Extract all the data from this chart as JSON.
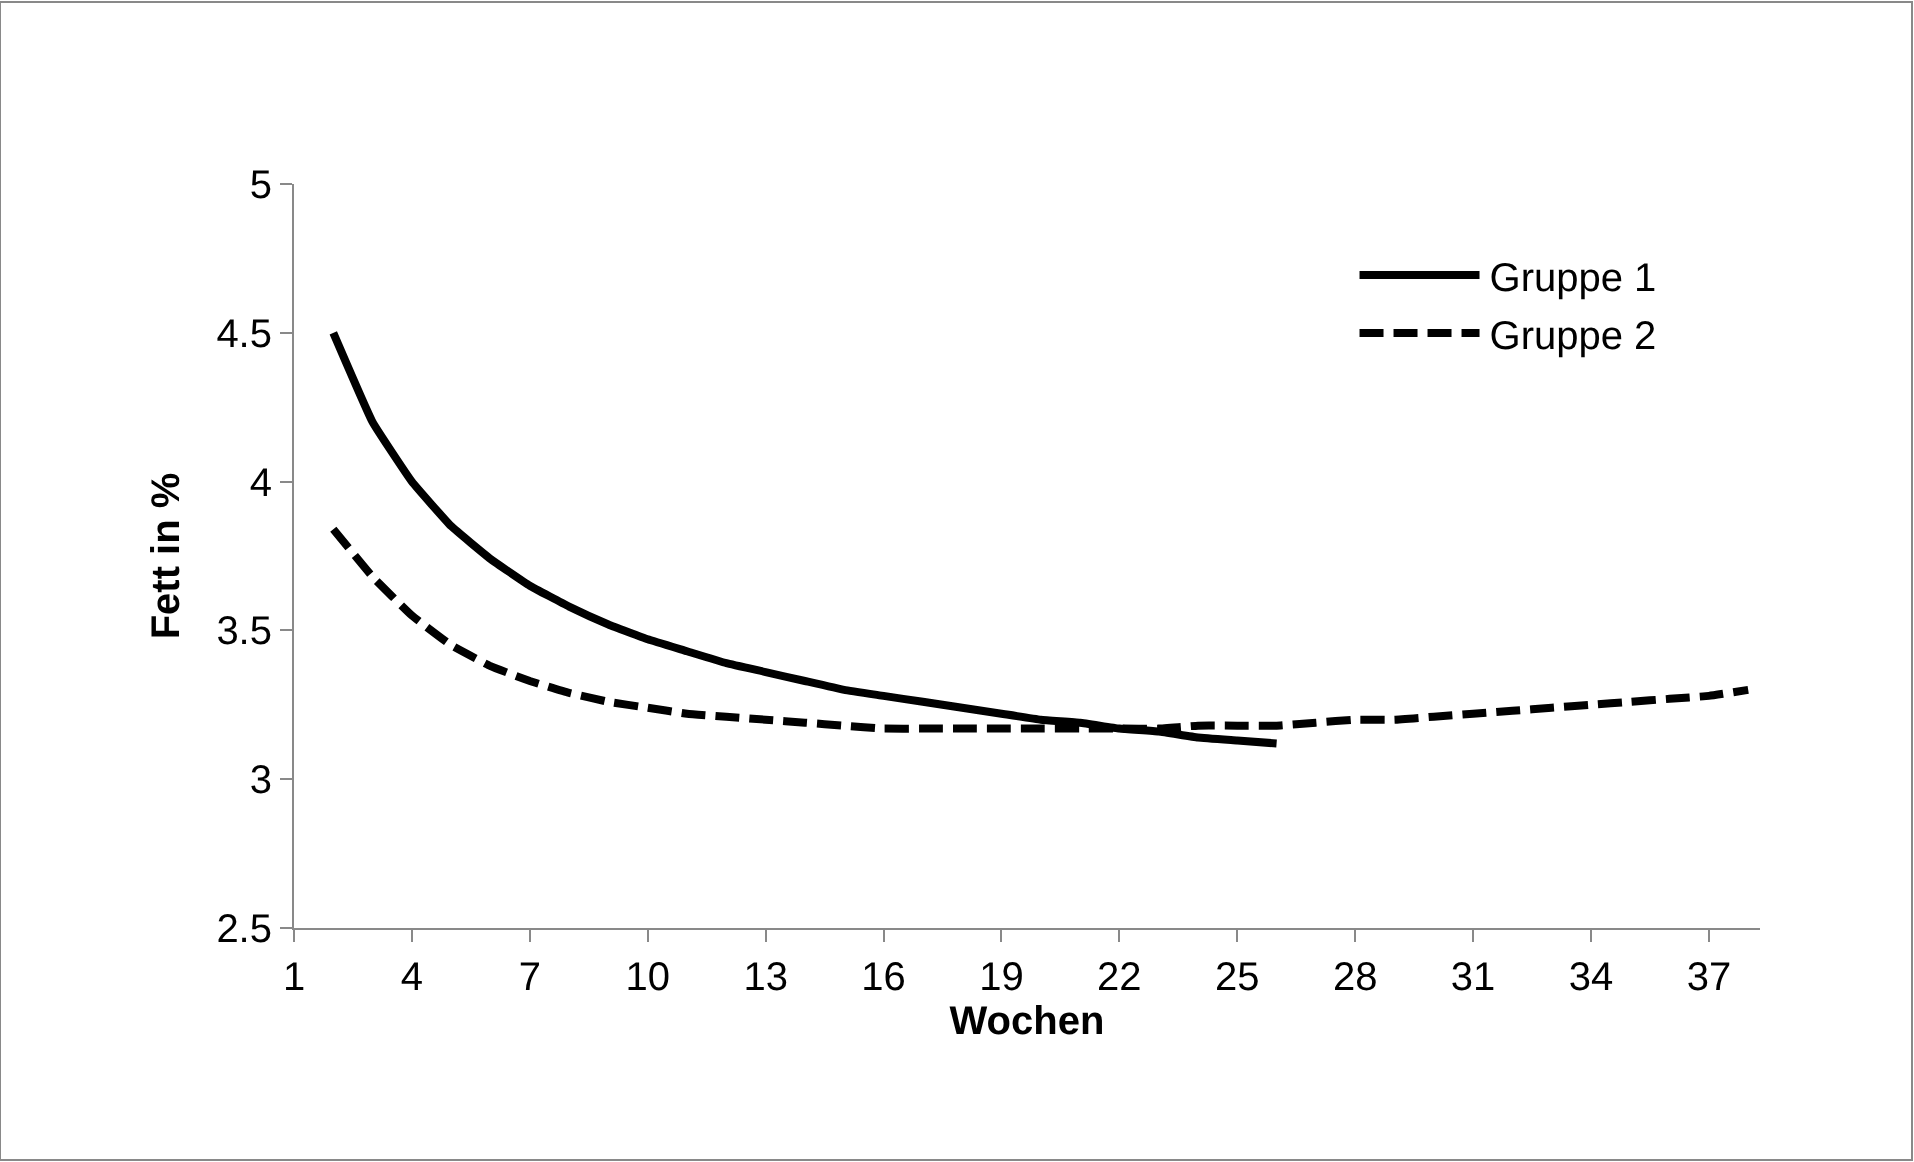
{
  "chart_data": {
    "type": "line",
    "xlabel": "Wochen",
    "ylabel": "Fett in %",
    "xlim": [
      1,
      38.3
    ],
    "xticks": [
      1,
      4,
      7,
      10,
      13,
      16,
      19,
      22,
      25,
      28,
      31,
      34,
      37
    ],
    "ylim": [
      2.5,
      5
    ],
    "yticks": [
      2.5,
      3,
      3.5,
      4,
      4.5,
      5
    ],
    "legend": "top right",
    "marker": "none",
    "series": [
      {
        "name": "Gruppe 1",
        "color": "#000000",
        "line_style": "solid",
        "x": [
          2,
          3,
          4,
          5,
          6,
          7,
          8,
          9,
          10,
          11,
          12,
          13,
          14,
          15,
          16,
          17,
          18,
          19,
          20,
          21,
          22,
          23,
          24,
          25,
          26
        ],
        "values": [
          4.5,
          4.2,
          4.0,
          3.85,
          3.74,
          3.65,
          3.58,
          3.52,
          3.47,
          3.43,
          3.39,
          3.36,
          3.33,
          3.3,
          3.28,
          3.26,
          3.24,
          3.22,
          3.2,
          3.19,
          3.17,
          3.16,
          3.14,
          3.13,
          3.12
        ]
      },
      {
        "name": "Gruppe 2",
        "color": "#000000",
        "line_style": "dashed",
        "x": [
          2,
          3,
          4,
          5,
          6,
          7,
          8,
          9,
          10,
          11,
          12,
          13,
          14,
          15,
          16,
          17,
          18,
          19,
          20,
          21,
          22,
          23,
          24,
          25,
          26,
          27,
          28,
          29,
          30,
          31,
          32,
          33,
          34,
          35,
          36,
          37,
          38
        ],
        "values": [
          3.84,
          3.68,
          3.55,
          3.45,
          3.38,
          3.33,
          3.29,
          3.26,
          3.24,
          3.22,
          3.21,
          3.2,
          3.19,
          3.18,
          3.17,
          3.17,
          3.17,
          3.17,
          3.17,
          3.17,
          3.17,
          3.17,
          3.18,
          3.18,
          3.18,
          3.19,
          3.2,
          3.2,
          3.21,
          3.22,
          3.23,
          3.24,
          3.25,
          3.26,
          3.27,
          3.28,
          3.3
        ]
      }
    ]
  }
}
